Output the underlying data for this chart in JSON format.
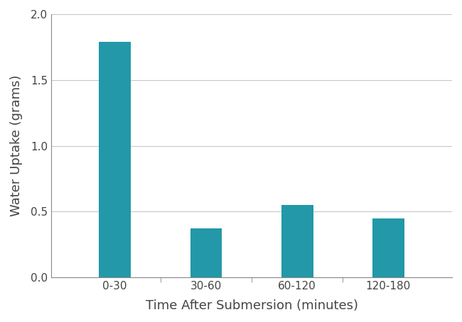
{
  "categories": [
    "0-30",
    "30-60",
    "60-120",
    "120-180"
  ],
  "values": [
    1.79,
    0.37,
    0.55,
    0.45
  ],
  "bar_color": "#2298a8",
  "bar_width": 0.35,
  "xlabel": "Time After Submersion (minutes)",
  "ylabel": "Water Uptake (grams)",
  "ylim": [
    0,
    2.0
  ],
  "yticks": [
    0.0,
    0.5,
    1.0,
    1.5,
    2.0
  ],
  "grid_color": "#c8c8c8",
  "background_color": "#ffffff",
  "xlabel_fontsize": 13,
  "ylabel_fontsize": 13,
  "tick_fontsize": 11,
  "tick_label_color": "#444444",
  "spine_color": "#888888"
}
